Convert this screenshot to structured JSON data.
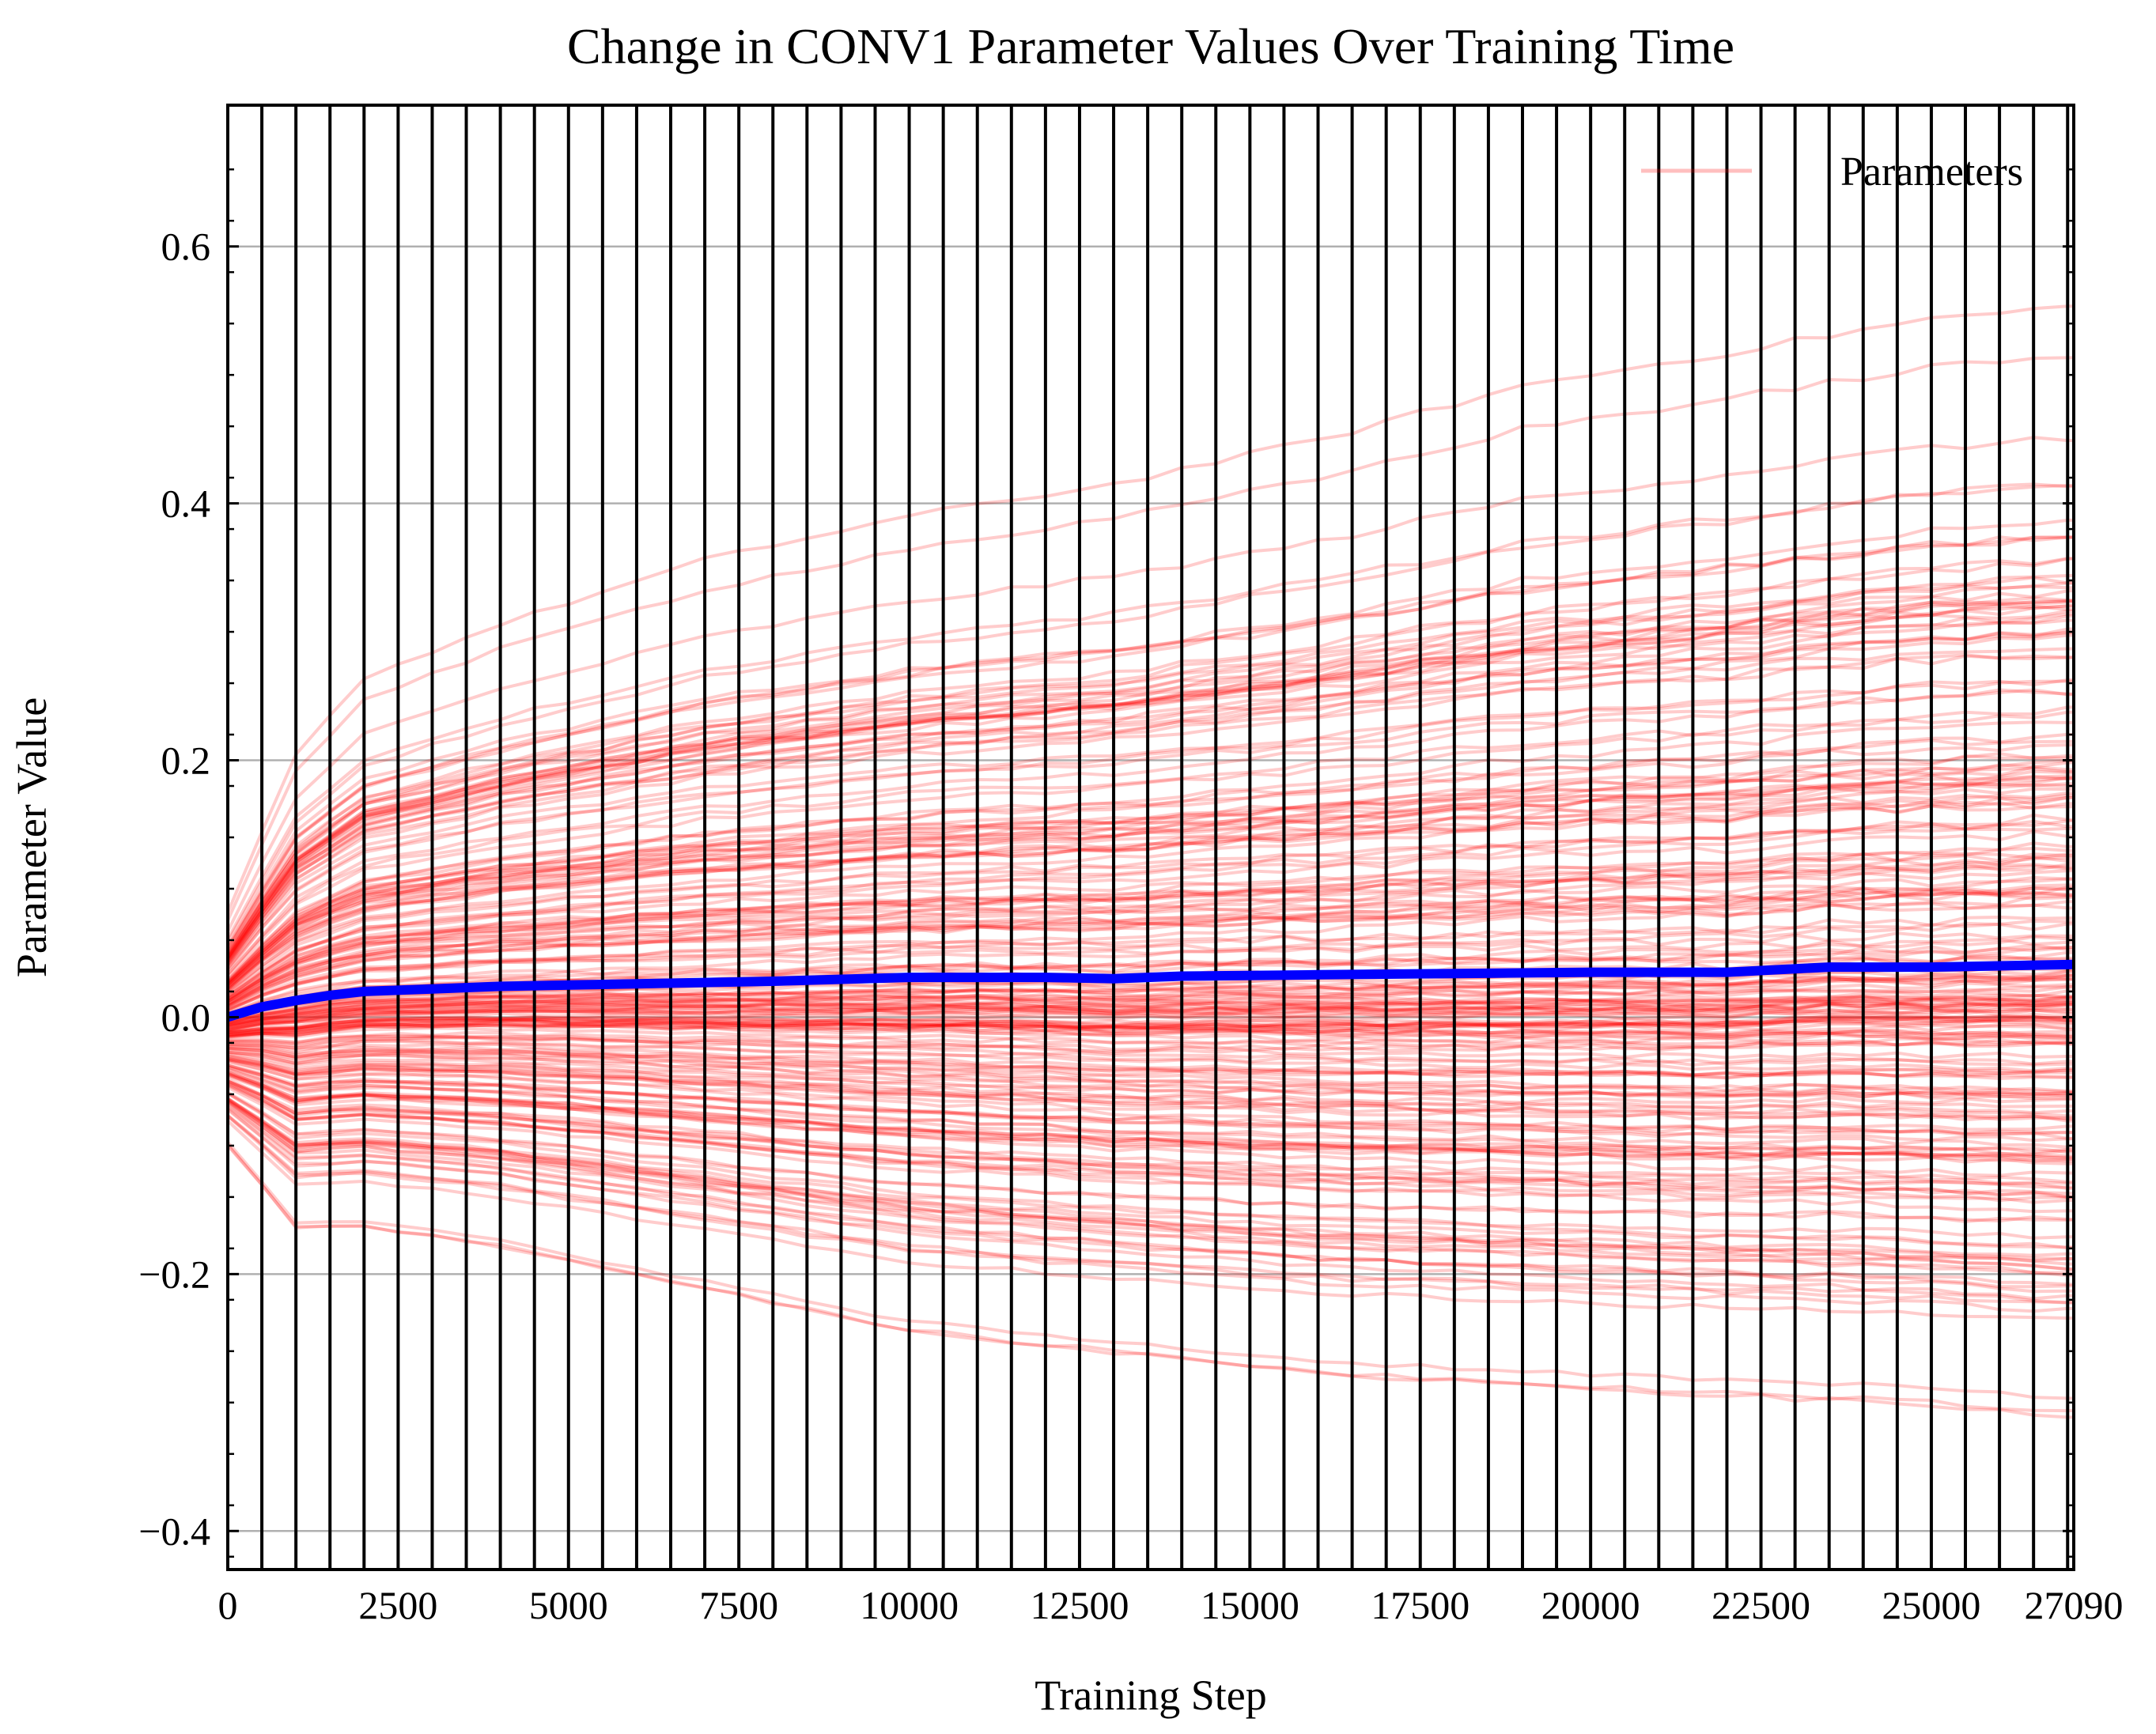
{
  "chart_data": {
    "type": "line",
    "title": "Change in CONV1 Parameter Values Over Training Time",
    "xlabel": "Training Step",
    "ylabel": "Parameter Value",
    "xlim": [
      0,
      27090
    ],
    "ylim": [
      -0.43,
      0.71
    ],
    "x_ticks": [
      0,
      2500,
      5000,
      7500,
      10000,
      12500,
      15000,
      17500,
      20000,
      22500,
      25000,
      27090
    ],
    "y_ticks": [
      -0.4,
      -0.2,
      0.0,
      0.2,
      0.4,
      0.6
    ],
    "y_tick_labels": [
      "−0.4",
      "−0.2",
      "0.0",
      "0.2",
      "0.4",
      "0.6"
    ],
    "y_grid": true,
    "legend": {
      "position": "top-right",
      "entries": [
        {
          "label": "Parameters",
          "color": "#ff0000"
        }
      ]
    },
    "checkpoint_interval": 500,
    "checkpoint_color": "#000000",
    "parameter_color": "#ff0000",
    "mean_color": "#0000ff",
    "series": [
      {
        "role": "parameters-envelope-upper",
        "x": [
          0,
          1000,
          2000,
          4000,
          7000,
          10000,
          13000,
          16000,
          19000,
          22000,
          25000,
          27090
        ],
        "values": [
          0.1,
          0.25,
          0.32,
          0.37,
          0.43,
          0.47,
          0.5,
          0.54,
          0.59,
          0.62,
          0.65,
          0.66
        ]
      },
      {
        "role": "parameters-envelope-lower",
        "x": [
          0,
          1000,
          2000,
          4000,
          7000,
          10000,
          13000,
          16000,
          19000,
          22000,
          25000,
          27090
        ],
        "values": [
          -0.12,
          -0.2,
          -0.2,
          -0.22,
          -0.26,
          -0.3,
          -0.32,
          -0.34,
          -0.35,
          -0.36,
          -0.37,
          -0.38
        ]
      },
      {
        "name": "mean",
        "x": [
          0,
          500,
          1000,
          1500,
          2000,
          3000,
          4000,
          6000,
          8000,
          10000,
          12000,
          13000,
          14000,
          16000,
          18000,
          20000,
          22000,
          23500,
          25000,
          27090
        ],
        "values": [
          0.0,
          0.008,
          0.013,
          0.017,
          0.02,
          0.022,
          0.024,
          0.026,
          0.028,
          0.031,
          0.031,
          0.03,
          0.032,
          0.033,
          0.034,
          0.035,
          0.035,
          0.039,
          0.039,
          0.041
        ]
      }
    ]
  }
}
